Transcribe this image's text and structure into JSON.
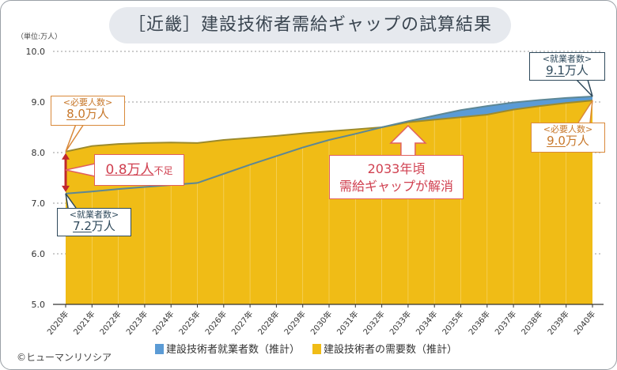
{
  "title": "［近畿］建設技術者需給ギャップの試算結果",
  "unit_label": "（単位:万人）",
  "copyright": "©ヒューマンリソシア",
  "colors": {
    "supply_fill": "#5b9bd5",
    "supply_line": "#5d8795",
    "demand_fill": "#f0bc16",
    "demand_line": "#9c8a2c",
    "callout_orange": "#d9893a",
    "callout_blue": "#2f4a5c",
    "callout_red": "#e06060",
    "arrow_red": "#c0282d"
  },
  "callouts": {
    "demand_2020": {
      "label": "<必要人数>",
      "value": "8.0",
      "unit": "万人"
    },
    "supply_2020": {
      "label": "<就業者数>",
      "value": "7.2",
      "unit": "万人"
    },
    "supply_2040": {
      "label": "<就業者数>",
      "value": "9.1",
      "unit": "万人"
    },
    "demand_2040": {
      "label": "<必要人数>",
      "value": "9.0",
      "unit": "万人"
    },
    "shortage": {
      "value": "0.8万人",
      "suffix": "不足"
    },
    "resolution": {
      "line1": "2033年頃",
      "line2": "需給ギャップが解消"
    }
  },
  "chart_data": {
    "type": "area",
    "title": "［近畿］建設技術者需給ギャップの試算結果",
    "ylabel": "（単位:万人）",
    "ylim": [
      5.0,
      10.0
    ],
    "yticks": [
      "5.0",
      "6.0",
      "7.0",
      "8.0",
      "9.0",
      "10.0"
    ],
    "grid": true,
    "legend_placement": "bottom",
    "categories": [
      "2020年",
      "2021年",
      "2022年",
      "2023年",
      "2024年",
      "2025年",
      "2026年",
      "2027年",
      "2028年",
      "2029年",
      "2030年",
      "2031年",
      "2032年",
      "2033年",
      "2034年",
      "2035年",
      "2036年",
      "2037年",
      "2038年",
      "2039年",
      "2040年"
    ],
    "series": [
      {
        "name": "建設技術者就業者数（推計）",
        "values": [
          7.19,
          7.23,
          7.28,
          7.32,
          7.36,
          7.4,
          7.58,
          7.76,
          7.93,
          8.1,
          8.25,
          8.37,
          8.5,
          8.62,
          8.73,
          8.84,
          8.92,
          8.99,
          9.04,
          9.08,
          9.11
        ]
      },
      {
        "name": "建設技術者の需要数（推計）",
        "values": [
          8.02,
          8.13,
          8.17,
          8.19,
          8.2,
          8.19,
          8.25,
          8.29,
          8.33,
          8.38,
          8.42,
          8.46,
          8.5,
          8.6,
          8.65,
          8.7,
          8.75,
          8.85,
          8.92,
          8.98,
          9.03
        ]
      }
    ]
  }
}
